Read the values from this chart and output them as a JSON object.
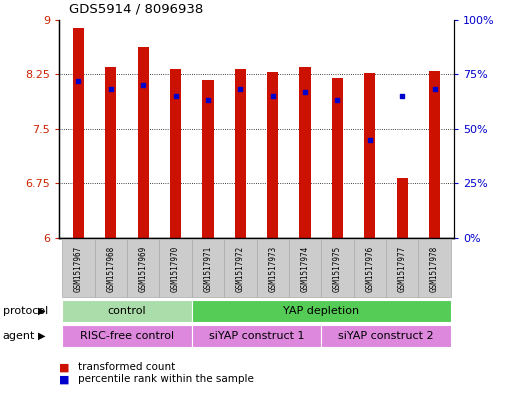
{
  "title": "GDS5914 / 8096938",
  "samples": [
    "GSM1517967",
    "GSM1517968",
    "GSM1517969",
    "GSM1517970",
    "GSM1517971",
    "GSM1517972",
    "GSM1517973",
    "GSM1517974",
    "GSM1517975",
    "GSM1517976",
    "GSM1517977",
    "GSM1517978"
  ],
  "transformed_counts": [
    8.88,
    8.35,
    8.62,
    8.32,
    8.17,
    8.32,
    8.28,
    8.35,
    8.2,
    8.26,
    6.82,
    8.3
  ],
  "percentile_ranks": [
    72,
    68,
    70,
    65,
    63,
    68,
    65,
    67,
    63,
    45,
    65,
    68
  ],
  "ylim_left": [
    6,
    9
  ],
  "ylim_right": [
    0,
    100
  ],
  "yticks_left": [
    6,
    6.75,
    7.5,
    8.25,
    9
  ],
  "yticks_right": [
    0,
    25,
    50,
    75,
    100
  ],
  "ytick_labels_left": [
    "6",
    "6.75",
    "7.5",
    "8.25",
    "9"
  ],
  "ytick_labels_right": [
    "0%",
    "25%",
    "50%",
    "75%",
    "100%"
  ],
  "bar_color": "#cc1100",
  "dot_color": "#0000cc",
  "protocol_color_light": "#aaddaa",
  "protocol_color_medium": "#55cc55",
  "agent_color": "#dd88dd",
  "label_protocol": "protocol",
  "label_agent": "agent",
  "legend_count_label": "transformed count",
  "legend_pct_label": "percentile rank within the sample",
  "tick_label_color_left": "#cc2200",
  "tick_label_color_right": "#0000cc",
  "bar_width": 0.35,
  "base_value": 6.0,
  "sample_box_color": "#cccccc",
  "sample_box_edge": "#aaaaaa"
}
